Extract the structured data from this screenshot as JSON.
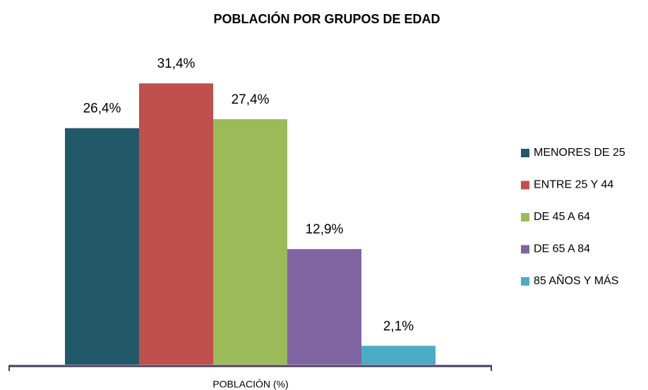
{
  "chart_data": {
    "type": "bar",
    "title": "POBLACIÓN POR GRUPOS DE EDAD",
    "categories": [
      "POBLACIÓN (%)"
    ],
    "series": [
      {
        "name": "MENORES DE 25",
        "color": "#215968",
        "values": [
          26.4
        ],
        "value_labels": [
          "26,4%"
        ]
      },
      {
        "name": "ENTRE 25 Y 44",
        "color": "#c0504d",
        "values": [
          31.4
        ],
        "value_labels": [
          "31,4%"
        ]
      },
      {
        "name": "DE 45 A 64",
        "color": "#9bbb59",
        "values": [
          27.4
        ],
        "value_labels": [
          "27,4%"
        ]
      },
      {
        "name": "DE 65 A 84",
        "color": "#8064a2",
        "values": [
          12.9
        ],
        "value_labels": [
          "12,9%"
        ]
      },
      {
        "name": "85 AÑOS Y MÁS",
        "color": "#4bacc6",
        "values": [
          2.1
        ],
        "value_labels": [
          "2,1%"
        ]
      }
    ],
    "legend": "right"
  }
}
